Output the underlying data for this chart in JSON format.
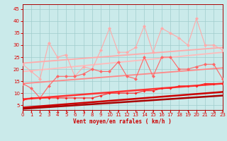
{
  "xlabel": "Vent moyen/en rafales ( km/h )",
  "bg_color": "#caeaea",
  "grid_color": "#a0cccc",
  "xlim": [
    0,
    23
  ],
  "ylim": [
    3,
    47
  ],
  "yticks": [
    5,
    10,
    15,
    20,
    25,
    30,
    35,
    40,
    45
  ],
  "xticks": [
    0,
    1,
    2,
    3,
    4,
    5,
    6,
    7,
    8,
    9,
    10,
    11,
    12,
    13,
    14,
    15,
    16,
    17,
    18,
    19,
    20,
    21,
    22,
    23
  ],
  "trend_lines": [
    {
      "x": [
        0,
        23
      ],
      "y": [
        22.5,
        29.0
      ],
      "color": "#ffaaaa",
      "lw": 1.3
    },
    {
      "x": [
        0,
        23
      ],
      "y": [
        19.0,
        27.0
      ],
      "color": "#ffbbbb",
      "lw": 1.3
    },
    {
      "x": [
        0,
        23
      ],
      "y": [
        14.0,
        20.5
      ],
      "color": "#ff8888",
      "lw": 1.3
    },
    {
      "x": [
        0,
        23
      ],
      "y": [
        7.5,
        14.0
      ],
      "color": "#ff3333",
      "lw": 1.8
    },
    {
      "x": [
        0,
        23
      ],
      "y": [
        4.0,
        10.5
      ],
      "color": "#cc0000",
      "lw": 1.8
    },
    {
      "x": [
        0,
        23
      ],
      "y": [
        3.5,
        9.0
      ],
      "color": "#aa0000",
      "lw": 1.8
    }
  ],
  "noisy_upper_pink": {
    "x": [
      0,
      1,
      2,
      3,
      4,
      5,
      6,
      7,
      8,
      9,
      10,
      11,
      12,
      13,
      14,
      15,
      16,
      17,
      18,
      19,
      20,
      21,
      22,
      23
    ],
    "y": [
      22,
      19,
      16,
      31,
      25,
      26,
      17,
      21,
      20,
      28,
      37,
      27,
      27,
      29,
      38,
      27,
      37,
      35,
      33,
      30,
      41,
      30,
      30,
      28
    ],
    "color": "#ffaaaa",
    "lw": 0.8,
    "ms": 2.5
  },
  "noisy_mid_pink": {
    "x": [
      0,
      1,
      2,
      3,
      4,
      5,
      6,
      7,
      8,
      9,
      10,
      11,
      12,
      13,
      14,
      15,
      16,
      17,
      18,
      19,
      20,
      21,
      22,
      23
    ],
    "y": [
      14,
      12,
      8,
      13,
      17,
      17,
      17,
      18,
      20,
      19,
      19,
      23,
      17,
      16,
      25,
      17,
      25,
      25,
      20,
      20,
      21,
      22,
      22,
      16
    ],
    "color": "#ff6666",
    "lw": 0.8,
    "ms": 2.5
  },
  "noisy_low_red": {
    "x": [
      0,
      1,
      2,
      3,
      4,
      5,
      6,
      7,
      8,
      9,
      10,
      11,
      12,
      13,
      14,
      15,
      16,
      17,
      18,
      19,
      20,
      21,
      22,
      23
    ],
    "y": [
      7,
      8,
      8,
      8,
      8,
      8,
      8,
      8,
      8,
      9,
      10,
      10,
      10,
      10,
      11,
      11,
      12,
      12,
      13,
      13,
      13,
      14,
      14,
      14
    ],
    "color": "#ff2222",
    "lw": 0.8,
    "ms": 2.0
  },
  "arrows": [
    "↓",
    "↓",
    "↓",
    "↘",
    "→",
    "↘",
    "↓",
    "↘",
    "↓",
    "↓",
    "↘",
    "↓",
    "↓",
    "↘",
    "↓",
    "↓",
    "↘",
    "↓",
    "↓",
    "↘",
    "↓",
    "↓",
    "↘",
    "↓"
  ]
}
